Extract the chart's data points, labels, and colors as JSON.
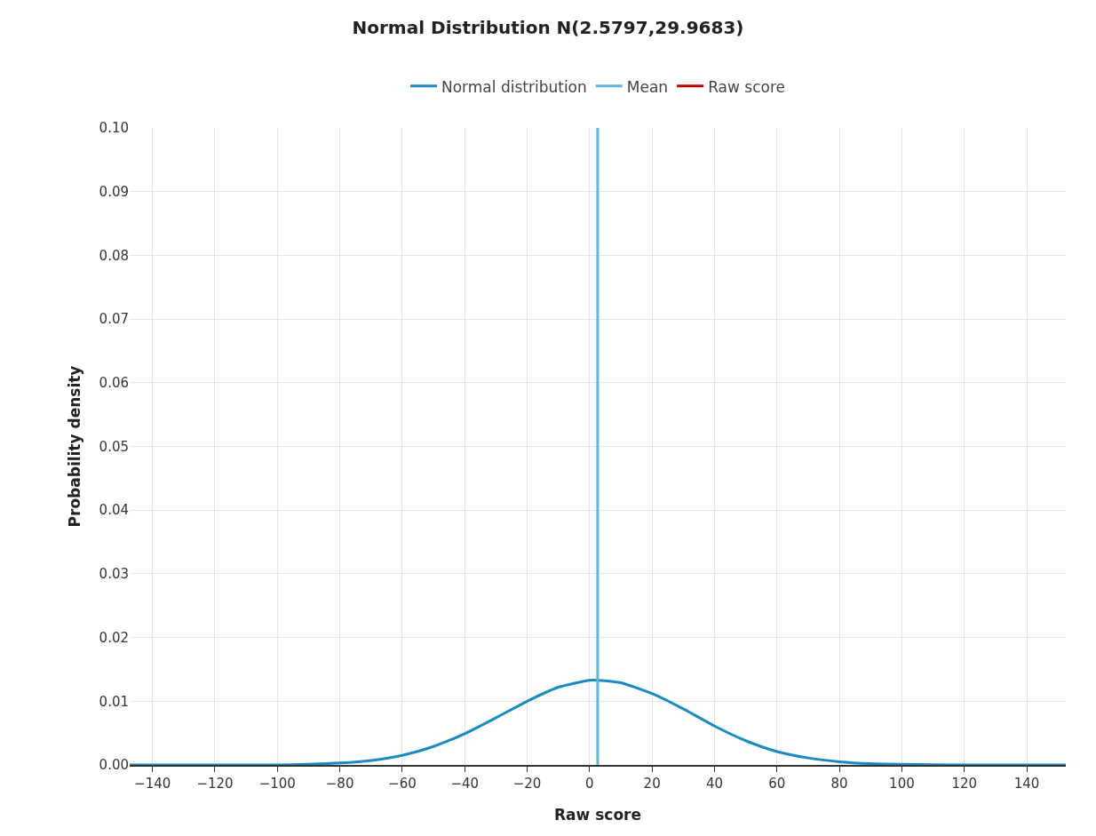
{
  "chart_data": {
    "type": "line",
    "title": "Normal Distribution N(2.5797,29.9683)",
    "xlabel": "Raw score",
    "ylabel": "Probability density",
    "xlim": [
      -147.3,
      152.5
    ],
    "xticks": [
      {
        "value": -140,
        "label": "−140"
      },
      {
        "value": -120,
        "label": "−120"
      },
      {
        "value": -100,
        "label": "−100"
      },
      {
        "value": -80,
        "label": "−80"
      },
      {
        "value": -60,
        "label": "−60"
      },
      {
        "value": -40,
        "label": "−40"
      },
      {
        "value": -20,
        "label": "−20"
      },
      0,
      20,
      40,
      60,
      80,
      100,
      120,
      140
    ],
    "ylim": [
      0,
      0.1
    ],
    "yticks": [
      {
        "value": 0,
        "label": "0.00"
      },
      {
        "value": 0.01,
        "label": "0.01"
      },
      {
        "value": 0.02,
        "label": "0.02"
      },
      {
        "value": 0.03,
        "label": "0.03"
      },
      {
        "value": 0.04,
        "label": "0.04"
      },
      {
        "value": 0.05,
        "label": "0.05"
      },
      {
        "value": 0.06,
        "label": "0.06"
      },
      {
        "value": 0.07,
        "label": "0.07"
      },
      {
        "value": 0.08,
        "label": "0.08"
      },
      {
        "value": 0.09,
        "label": "0.09"
      },
      {
        "value": 0.1,
        "label": "0.10"
      }
    ],
    "grid": true,
    "legend": "top",
    "marker": "none",
    "line_style": "solid",
    "series": [
      {
        "name": "Normal distribution",
        "color": "#1a8bc2",
        "x": [
          -147.3,
          -120,
          -100,
          -90,
          -80,
          -70,
          -60,
          -50,
          -40,
          -30,
          -20,
          -10,
          0,
          2.58,
          10,
          20,
          30,
          40,
          50,
          60,
          70,
          80,
          90,
          100,
          120,
          152.5
        ],
        "values": [
          0,
          0,
          0,
          0.0001,
          0.0003,
          0.0007,
          0.0015,
          0.0029,
          0.0049,
          0.0074,
          0.01,
          0.0122,
          0.0133,
          0.0133,
          0.0129,
          0.0112,
          0.0088,
          0.0061,
          0.0038,
          0.0021,
          0.0011,
          0.0005,
          0.0002,
          0.0001,
          0,
          0
        ]
      },
      {
        "name": "Mean",
        "color": "#5cb6da",
        "x": [
          2.5797,
          2.5797
        ],
        "values": [
          0,
          0.1
        ]
      },
      {
        "name": "Raw score",
        "color": "#c00000"
      }
    ]
  }
}
